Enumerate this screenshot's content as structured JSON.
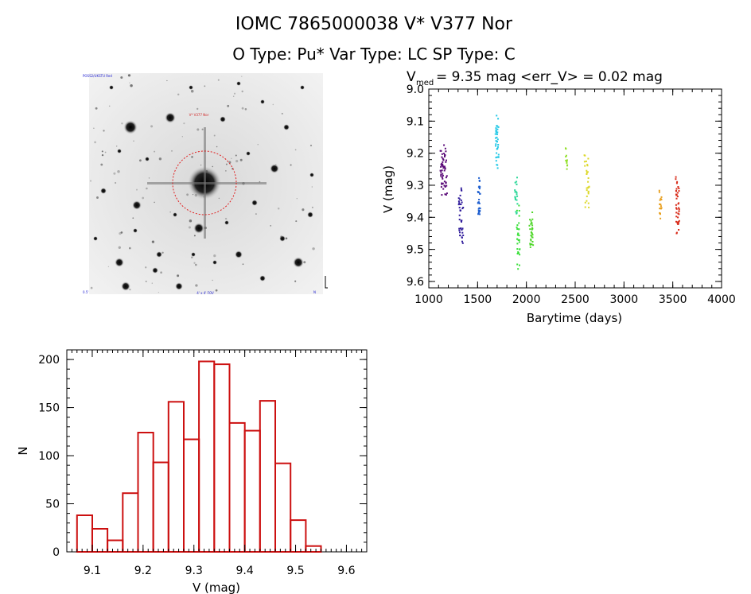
{
  "header": {
    "title": "IOMC 7865000038    V* V377 Nor",
    "subtitle": "O Type: Pu*  Var Type: LC  SP Type: C"
  },
  "image_panel": {
    "description_label": "star-field",
    "finder_label": "V* V377 Nor",
    "corner_top_left": "POSS2/UKSTU Red",
    "corner_bottom_left": "0.5'",
    "corner_bottom_center": "4' x 4' FOV",
    "corner_bottom_right": "N"
  },
  "chart_data": [
    {
      "type": "scatter",
      "title_prefix": "V",
      "title_subscript": "med",
      "title_rest": " = 9.35 mag <err_V> = 0.02 mag",
      "xlabel": "Barytime (days)",
      "ylabel": "V (mag)",
      "xlim": [
        1000,
        4000
      ],
      "ylim": [
        9.62,
        9.0
      ],
      "xticks": [
        1000,
        1500,
        2000,
        2500,
        3000,
        3500,
        4000
      ],
      "yticks": [
        "9.0",
        "9.1",
        "9.2",
        "9.3",
        "9.4",
        "9.5",
        "9.6"
      ],
      "series": [
        {
          "name": "seg1",
          "color": "#5a0a78",
          "x": [
            1110,
            1190
          ],
          "ymin": 9.17,
          "ymax": 9.34,
          "n": 60
        },
        {
          "name": "seg2",
          "color": "#2e1a9a",
          "x": [
            1300,
            1360
          ],
          "ymin": 9.3,
          "ymax": 9.5,
          "n": 40
        },
        {
          "name": "seg3",
          "color": "#1f5fd0",
          "x": [
            1500,
            1530
          ],
          "ymin": 9.26,
          "ymax": 9.43,
          "n": 30
        },
        {
          "name": "seg4",
          "color": "#22c8e6",
          "x": [
            1680,
            1720
          ],
          "ymin": 9.07,
          "ymax": 9.25,
          "n": 40
        },
        {
          "name": "seg5",
          "color": "#2ed89a",
          "x": [
            1880,
            1910
          ],
          "ymin": 9.26,
          "ymax": 9.4,
          "n": 20
        },
        {
          "name": "seg6",
          "color": "#3ae03a",
          "x": [
            1900,
            1935
          ],
          "ymin": 9.35,
          "ymax": 9.58,
          "n": 30
        },
        {
          "name": "seg7",
          "color": "#4cd626",
          "x": [
            2030,
            2070
          ],
          "ymin": 9.38,
          "ymax": 9.52,
          "n": 30
        },
        {
          "name": "seg8",
          "color": "#92e02a",
          "x": [
            2400,
            2420
          ],
          "ymin": 9.18,
          "ymax": 9.26,
          "n": 12
        },
        {
          "name": "seg9",
          "color": "#dcd82a",
          "x": [
            2590,
            2650
          ],
          "ymin": 9.19,
          "ymax": 9.39,
          "n": 30
        },
        {
          "name": "seg10",
          "color": "#e8a020",
          "x": [
            3360,
            3390
          ],
          "ymin": 9.31,
          "ymax": 9.41,
          "n": 20
        },
        {
          "name": "seg11",
          "color": "#d82a18",
          "x": [
            3530,
            3570
          ],
          "ymin": 9.26,
          "ymax": 9.48,
          "n": 40
        }
      ]
    },
    {
      "type": "bar",
      "xlabel": "V (mag)",
      "ylabel": "N",
      "xlim": [
        9.05,
        9.64
      ],
      "ylim": [
        0,
        210
      ],
      "xticks": [
        "9.1",
        "9.2",
        "9.3",
        "9.4",
        "9.5",
        "9.6"
      ],
      "yticks": [
        "0",
        "50",
        "100",
        "150",
        "200"
      ],
      "bin_width": 0.03,
      "bin_start": 9.07,
      "values": [
        38,
        24,
        12,
        61,
        124,
        93,
        156,
        117,
        198,
        195,
        134,
        126,
        157,
        92,
        33,
        6
      ],
      "bar_color": "#cc1010"
    }
  ]
}
